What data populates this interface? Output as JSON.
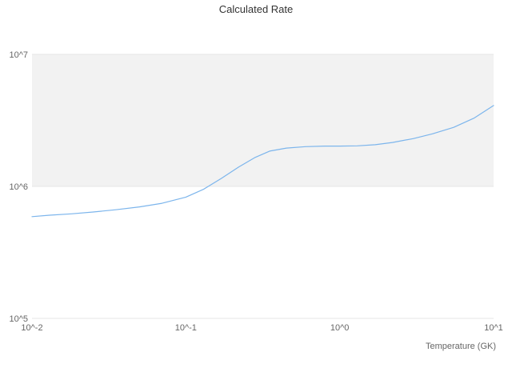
{
  "title": "Calculated Rate",
  "colors": {
    "line": "#7cb5ec",
    "plot_band": "#f2f2f2",
    "grid": "#e6e6e6",
    "tick_text": "#666666",
    "title_text": "#333333",
    "background": "#ffffff"
  },
  "chart_data": {
    "type": "line",
    "title": "Calculated Rate",
    "xlabel": "Temperature (GK)",
    "ylabel": "",
    "x_scale": "log",
    "y_scale": "log",
    "xlim": [
      0.01,
      10
    ],
    "ylim": [
      100000,
      10000000
    ],
    "grid": "horizontal",
    "legend": "none",
    "plot_band": {
      "from": 1000000,
      "to": 10000000
    },
    "x_ticks": [
      {
        "value": 0.01,
        "label": "10^-2"
      },
      {
        "value": 0.1,
        "label": "10^-1"
      },
      {
        "value": 1,
        "label": "10^0"
      },
      {
        "value": 10,
        "label": "10^1"
      }
    ],
    "y_ticks": [
      {
        "value": 100000,
        "label": "10^5"
      },
      {
        "value": 1000000,
        "label": "10^6"
      },
      {
        "value": 10000000,
        "label": "10^7"
      }
    ],
    "series": [
      {
        "name": "Calculated Rate",
        "x": [
          0.01,
          0.013,
          0.018,
          0.025,
          0.035,
          0.05,
          0.07,
          0.1,
          0.13,
          0.17,
          0.22,
          0.28,
          0.35,
          0.45,
          0.6,
          0.8,
          1.0,
          1.3,
          1.7,
          2.2,
          3.0,
          4.0,
          5.5,
          7.5,
          10
        ],
        "y": [
          590000,
          605000,
          620000,
          640000,
          665000,
          700000,
          745000,
          830000,
          950000,
          1150000,
          1400000,
          1650000,
          1850000,
          1950000,
          2000000,
          2020000,
          2020000,
          2030000,
          2070000,
          2150000,
          2300000,
          2500000,
          2800000,
          3300000,
          4100000
        ]
      }
    ]
  }
}
